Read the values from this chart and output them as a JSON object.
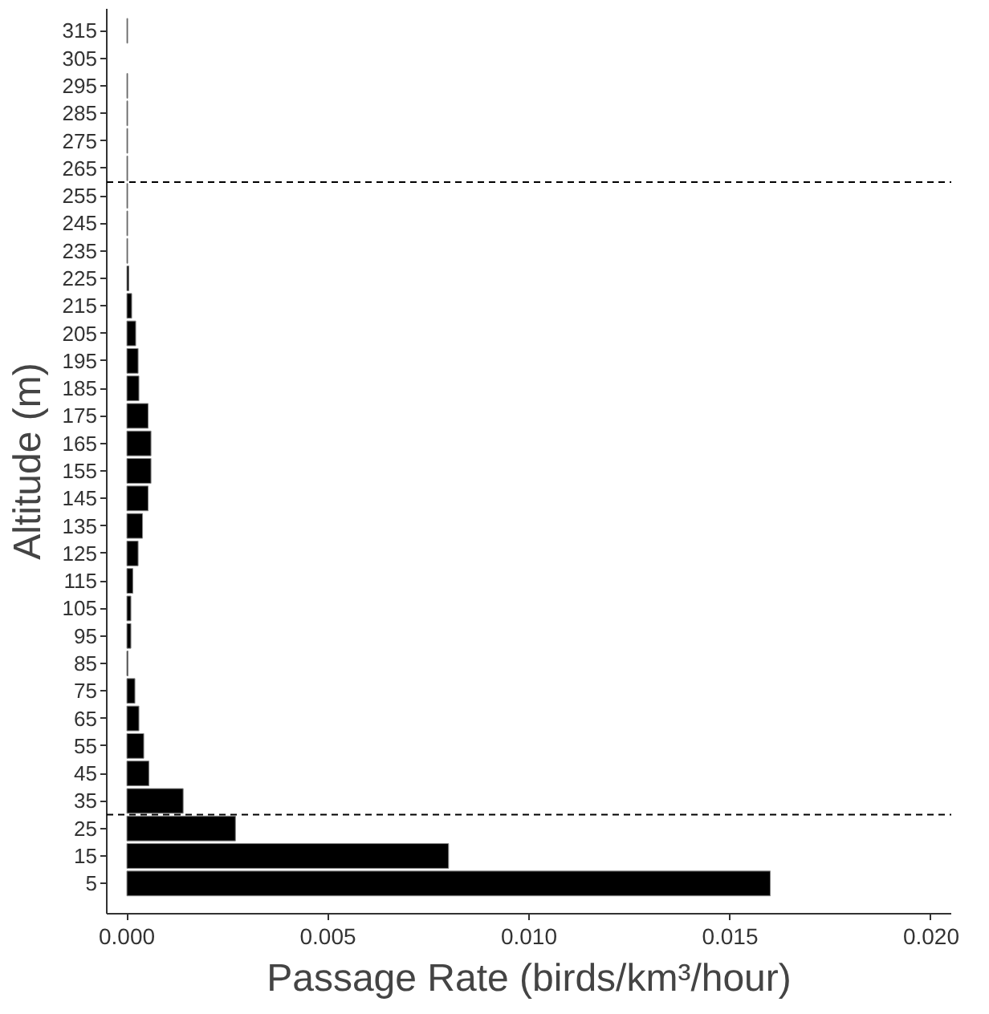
{
  "chart_data": {
    "type": "bar",
    "orientation": "horizontal",
    "xlabel": "Passage Rate (birds/km³/hour)",
    "ylabel": "Altitude (m)",
    "x": [
      5,
      15,
      25,
      35,
      45,
      55,
      65,
      75,
      85,
      95,
      105,
      115,
      125,
      135,
      145,
      155,
      165,
      175,
      185,
      195,
      205,
      215,
      225,
      235,
      245,
      255,
      265,
      275,
      285,
      295,
      305,
      315
    ],
    "values": [
      0.016,
      0.008,
      0.0027,
      0.0014,
      0.00055,
      0.00042,
      0.0003,
      0.0002,
      3e-05,
      0.0001,
      0.0001,
      0.00015,
      0.00028,
      0.00039,
      0.00053,
      0.0006,
      0.0006,
      0.00053,
      0.0003,
      0.00028,
      0.00022,
      0.00012,
      5e-05,
      2e-05,
      2e-05,
      2e-05,
      2e-05,
      2e-05,
      2e-05,
      2e-05,
      null,
      2e-05
    ],
    "color": "#000000",
    "xlim": [
      -0.0005,
      0.0205
    ],
    "xticks": [
      {
        "value": 0,
        "label": "0.000"
      },
      {
        "value": 0.005,
        "label": "0.005"
      },
      {
        "value": 0.01,
        "label": "0.010"
      },
      {
        "value": 0.015,
        "label": "0.015"
      },
      {
        "value": 0.02,
        "label": "0.020"
      }
    ],
    "ylim": [
      -6,
      323
    ],
    "yticks": [
      5,
      15,
      25,
      35,
      45,
      55,
      65,
      75,
      85,
      95,
      105,
      115,
      125,
      135,
      145,
      155,
      165,
      175,
      185,
      195,
      205,
      215,
      225,
      235,
      245,
      255,
      265,
      275,
      285,
      295,
      305,
      315
    ],
    "ref_lines": [
      {
        "axis": "y",
        "value": 260,
        "line_style": "dashed",
        "color": "#000000"
      },
      {
        "axis": "y",
        "value": 30,
        "line_style": "dashed",
        "color": "#000000"
      }
    ],
    "grid": false
  }
}
